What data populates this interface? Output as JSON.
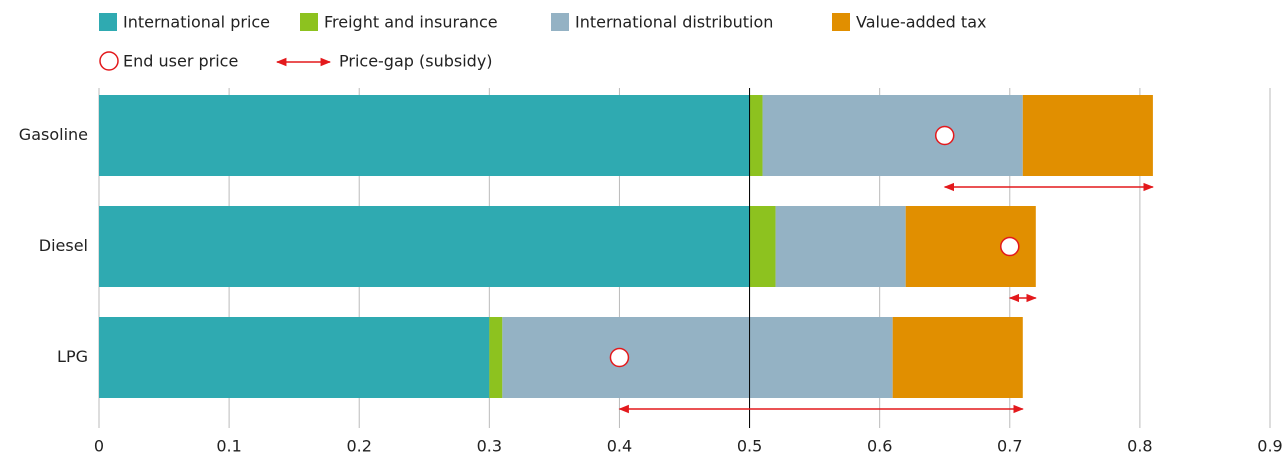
{
  "chart_data": {
    "type": "stacked_bar_horizontal",
    "categories": [
      "Gasoline",
      "Diesel",
      "LPG"
    ],
    "series": [
      {
        "name": "International price",
        "color": "#2faab1",
        "values": [
          0.5,
          0.5,
          0.3
        ]
      },
      {
        "name": "Freight and insurance",
        "color": "#8dc21f",
        "values": [
          0.01,
          0.02,
          0.01
        ]
      },
      {
        "name": "International distribution",
        "color": "#94b2c4",
        "values": [
          0.2,
          0.1,
          0.3
        ]
      },
      {
        "name": "Value-added tax",
        "color": "#e18f00",
        "values": [
          0.1,
          0.1,
          0.1
        ]
      }
    ],
    "end_user_price": {
      "name": "End user price",
      "color": "#e3191c",
      "values": [
        0.65,
        0.7,
        0.4
      ]
    },
    "price_gap": {
      "name": "Price-gap (subsidy)",
      "color": "#e3191c",
      "values": [
        0.16,
        0.02,
        0.31
      ]
    },
    "xlim": [
      0,
      0.9
    ],
    "xticks": [
      0,
      0.1,
      0.2,
      0.3,
      0.4,
      0.5,
      0.6,
      0.7,
      0.8,
      0.9
    ],
    "reference_x": 0.5,
    "grid": true
  }
}
